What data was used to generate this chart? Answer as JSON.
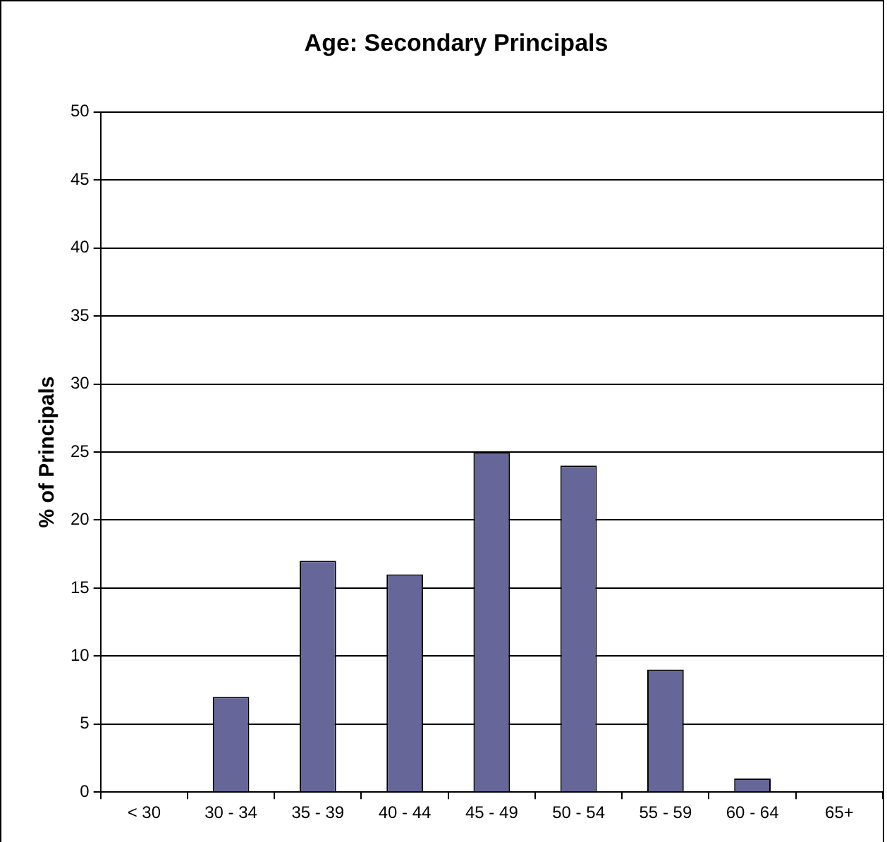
{
  "chart_data": {
    "type": "bar",
    "title": "Age: Secondary Principals",
    "ylabel": "% of Principals",
    "categories": [
      "< 30",
      "30 - 34",
      "35 - 39",
      "40 - 44",
      "45 - 49",
      "50 - 54",
      "55 - 59",
      "60 - 64",
      "65+"
    ],
    "values": [
      0,
      7,
      17,
      16,
      25,
      24,
      9,
      1,
      0
    ],
    "color": "#666699",
    "ylim": [
      0,
      50
    ],
    "yticks": [
      0,
      5,
      10,
      15,
      20,
      25,
      30,
      35,
      40,
      45,
      50
    ],
    "grid": "y"
  }
}
